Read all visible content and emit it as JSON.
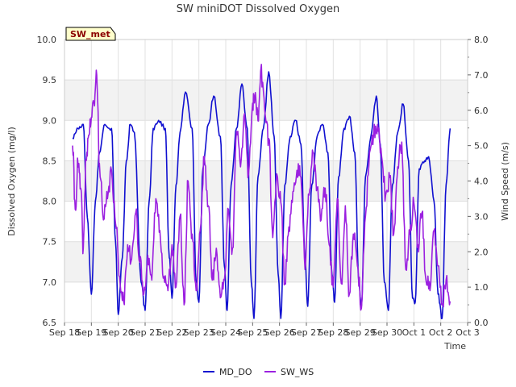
{
  "chart_data": {
    "type": "line",
    "title": "SW miniDOT Dissolved Oxygen",
    "xlabel": "Time",
    "ylabel_left": "Dissolved Oxygen (mg/l)",
    "ylabel_right": "Wind Speed (m/s)",
    "badge": "SW_met",
    "x_ticks": [
      "Sep 18",
      "Sep 19",
      "Sep 20",
      "Sep 21",
      "Sep 22",
      "Sep 23",
      "Sep 24",
      "Sep 25",
      "Sep 26",
      "Sep 27",
      "Sep 28",
      "Sep 29",
      "Sep 30",
      "Oct 1",
      "Oct 2",
      "Oct 3"
    ],
    "xlim": [
      0,
      15
    ],
    "ylim_left": [
      6.5,
      10.0
    ],
    "ylim_right": [
      0.0,
      8.0
    ],
    "y_ticks_left": [
      "6.5",
      "7.0",
      "7.5",
      "8.0",
      "8.5",
      "9.0",
      "9.5",
      "10.0"
    ],
    "y_ticks_right": [
      "0.0",
      "1.0",
      "2.0",
      "3.0",
      "4.0",
      "5.0",
      "6.0",
      "7.0",
      "8.0"
    ],
    "grid": true,
    "legend_position": "bottom-center",
    "series": [
      {
        "name": "MD_DO",
        "axis": "left",
        "color": "#1010d0",
        "x": [
          0.3,
          0.5,
          0.7,
          0.85,
          1.0,
          1.15,
          1.3,
          1.5,
          1.75,
          1.9,
          2.0,
          2.15,
          2.3,
          2.45,
          2.6,
          2.85,
          3.0,
          3.15,
          3.3,
          3.5,
          3.75,
          3.9,
          4.0,
          4.15,
          4.3,
          4.5,
          4.75,
          4.9,
          5.0,
          5.15,
          5.35,
          5.55,
          5.8,
          5.95,
          6.05,
          6.2,
          6.4,
          6.6,
          6.8,
          6.95,
          7.05,
          7.2,
          7.4,
          7.6,
          7.8,
          7.95,
          8.05,
          8.2,
          8.4,
          8.6,
          8.8,
          8.95,
          9.05,
          9.2,
          9.4,
          9.6,
          9.8,
          9.95,
          10.05,
          10.2,
          10.4,
          10.6,
          10.8,
          10.95,
          11.05,
          11.2,
          11.4,
          11.6,
          11.75,
          11.9,
          12.05,
          12.2,
          12.4,
          12.6,
          12.8,
          12.95,
          13.05,
          13.2,
          13.4,
          13.55,
          13.75,
          13.9,
          14.05,
          14.2,
          14.35
        ],
        "values": [
          8.78,
          8.9,
          8.95,
          7.8,
          6.85,
          8.0,
          8.6,
          8.95,
          8.9,
          7.5,
          6.6,
          7.3,
          8.5,
          8.95,
          8.85,
          7.0,
          6.65,
          8.0,
          8.9,
          9.0,
          8.9,
          7.3,
          6.8,
          8.2,
          8.85,
          9.35,
          8.9,
          7.0,
          6.75,
          8.4,
          8.95,
          9.3,
          8.8,
          7.2,
          6.65,
          8.2,
          8.9,
          9.45,
          8.9,
          7.0,
          6.55,
          8.3,
          8.9,
          9.6,
          8.8,
          7.1,
          6.55,
          8.2,
          8.8,
          9.0,
          8.7,
          7.3,
          6.7,
          8.2,
          8.8,
          8.95,
          8.6,
          7.1,
          6.75,
          8.3,
          8.9,
          9.05,
          8.6,
          7.0,
          6.7,
          8.3,
          8.8,
          9.3,
          8.7,
          7.0,
          6.65,
          8.2,
          8.85,
          9.2,
          8.5,
          6.8,
          6.75,
          8.4,
          8.5,
          8.55,
          8.0,
          6.85,
          6.55,
          8.2,
          8.9
        ],
        "noise_seed": 17
      },
      {
        "name": "SW_WS",
        "axis": "right",
        "color": "#9b20e0",
        "x": [
          0.3,
          0.4,
          0.5,
          0.6,
          0.7,
          0.8,
          0.9,
          1.0,
          1.1,
          1.2,
          1.3,
          1.45,
          1.6,
          1.75,
          1.9,
          2.05,
          2.2,
          2.35,
          2.5,
          2.65,
          2.8,
          2.95,
          3.1,
          3.25,
          3.4,
          3.55,
          3.7,
          3.85,
          4.0,
          4.15,
          4.3,
          4.45,
          4.6,
          4.75,
          4.9,
          5.05,
          5.2,
          5.35,
          5.5,
          5.65,
          5.8,
          5.95,
          6.1,
          6.25,
          6.4,
          6.55,
          6.7,
          6.85,
          7.0,
          7.1,
          7.2,
          7.3,
          7.45,
          7.6,
          7.75,
          7.9,
          8.05,
          8.2,
          8.35,
          8.5,
          8.65,
          8.8,
          8.95,
          9.1,
          9.25,
          9.4,
          9.55,
          9.7,
          9.85,
          10.0,
          10.15,
          10.3,
          10.45,
          10.6,
          10.75,
          10.9,
          11.05,
          11.2,
          11.35,
          11.5,
          11.65,
          11.8,
          11.95,
          12.1,
          12.25,
          12.4,
          12.55,
          12.7,
          12.85,
          13.0,
          13.15,
          13.3,
          13.45,
          13.6,
          13.75,
          13.9,
          14.05,
          14.2,
          14.35
        ],
        "values": [
          5.0,
          3.2,
          4.5,
          3.8,
          2.1,
          4.6,
          5.3,
          5.8,
          6.2,
          7.0,
          4.5,
          2.9,
          3.5,
          4.3,
          2.8,
          1.3,
          0.6,
          2.2,
          1.8,
          3.1,
          1.7,
          0.8,
          1.9,
          1.2,
          3.5,
          2.6,
          1.3,
          0.9,
          2.2,
          1.0,
          3.0,
          0.5,
          4.0,
          2.5,
          0.9,
          2.6,
          4.7,
          3.3,
          1.2,
          2.1,
          0.7,
          1.2,
          3.2,
          2.1,
          5.4,
          4.4,
          5.9,
          4.2,
          6.2,
          6.5,
          5.7,
          7.1,
          6.0,
          5.2,
          2.4,
          4.2,
          3.4,
          1.1,
          2.7,
          3.7,
          4.3,
          4.1,
          1.5,
          3.6,
          4.8,
          3.8,
          2.9,
          3.8,
          2.2,
          1.0,
          3.5,
          1.1,
          3.3,
          0.8,
          2.5,
          1.6,
          0.4,
          3.0,
          4.8,
          5.3,
          5.6,
          4.7,
          3.6,
          4.1,
          2.5,
          4.4,
          5.1,
          1.5,
          2.5,
          3.4,
          2.2,
          3.1,
          1.2,
          0.9,
          2.6,
          1.6,
          0.5,
          1.2,
          0.6
        ],
        "noise_seed": 41
      }
    ]
  }
}
